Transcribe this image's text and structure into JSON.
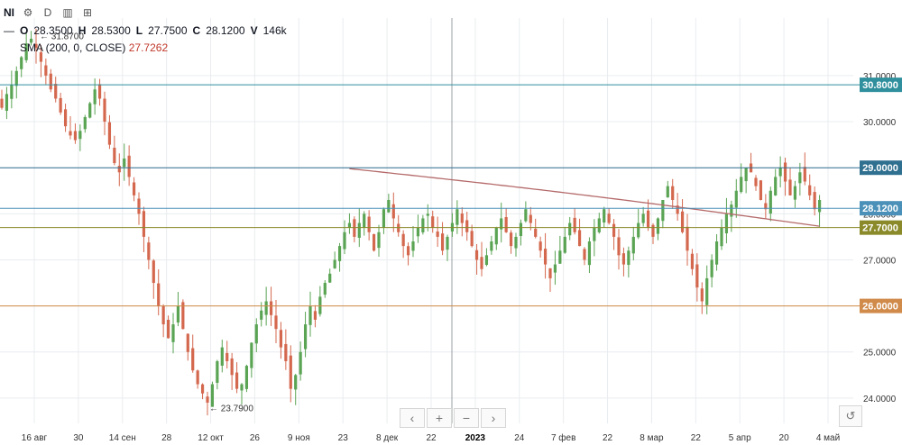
{
  "header": {
    "symbol": "NI",
    "interval": "D",
    "icons": [
      "gear-icon",
      "bar-chart-icon",
      "add-panel-icon"
    ]
  },
  "ohlc": {
    "labels": {
      "o": "O",
      "h": "H",
      "l": "L",
      "c": "C",
      "v": "V"
    },
    "open": "28.3500",
    "high": "28.5300",
    "low": "27.7500",
    "close": "28.1200",
    "volume": "146k"
  },
  "indicator": {
    "label": "SMA (200, 0, CLOSE)",
    "value": "27.7262"
  },
  "colors": {
    "up": "#5aa454",
    "down": "#d4684e",
    "sma": "#b56a6a",
    "grid": "#e9ecef"
  },
  "nav_icons": [
    "chevron-left-icon",
    "plus-icon",
    "minus-icon",
    "chevron-right-icon"
  ],
  "chart_data": {
    "type": "candlestick",
    "ylim": [
      23.45,
      32.25
    ],
    "y_ticks": [
      "24.0000",
      "25.0000",
      "26.0000",
      "27.0000",
      "28.0000",
      "29.0000",
      "30.0000",
      "31.0000"
    ],
    "x_ticks": [
      "16 авг",
      "30",
      "14 сен",
      "28",
      "12 окт",
      "26",
      "9 ноя",
      "23",
      "8 дек",
      "22",
      "2023",
      "24",
      "7 фев",
      "22",
      "8 мар",
      "22",
      "5 апр",
      "20",
      "4 май"
    ],
    "x_bold_tick": "2023",
    "levels": [
      {
        "value": 30.8,
        "label": "30.8000",
        "color": "#2f8f9d"
      },
      {
        "value": 29.0,
        "label": "29.0000",
        "color": "#2f6f8f"
      },
      {
        "value": 28.12,
        "label": "28.1200",
        "color": "#4a90b8"
      },
      {
        "value": 27.7,
        "label": "27.7000",
        "color": "#8a8a2a"
      },
      {
        "value": 26.0,
        "label": "26.0000",
        "color": "#d08a4a"
      }
    ],
    "annotations": [
      {
        "label": "31.8700",
        "value": 31.87
      },
      {
        "label": "23.7900",
        "value": 23.79
      }
    ],
    "closes": [
      30.3,
      30.6,
      30.8,
      31.1,
      31.4,
      31.7,
      31.8,
      31.6,
      31.3,
      31.0,
      30.7,
      30.5,
      30.2,
      29.9,
      29.7,
      29.6,
      29.8,
      30.1,
      30.4,
      30.7,
      30.5,
      30.0,
      29.5,
      29.1,
      28.9,
      29.2,
      28.8,
      28.4,
      28.0,
      27.5,
      27.0,
      26.5,
      26.0,
      25.6,
      25.3,
      25.6,
      26.0,
      25.5,
      25.0,
      24.6,
      24.3,
      24.1,
      23.9,
      24.3,
      24.8,
      25.1,
      24.8,
      24.5,
      24.2,
      24.3,
      24.7,
      25.2,
      25.6,
      25.9,
      26.1,
      25.8,
      25.5,
      25.1,
      24.8,
      24.2,
      24.5,
      25.0,
      25.6,
      26.0,
      25.7,
      26.2,
      26.5,
      26.7,
      27.0,
      27.3,
      27.6,
      27.8,
      27.5,
      27.8,
      28.0,
      27.6,
      27.2,
      27.6,
      28.1,
      28.3,
      27.9,
      27.6,
      27.3,
      27.1,
      27.4,
      27.7,
      27.9,
      28.0,
      27.7,
      27.5,
      27.2,
      27.5,
      27.8,
      28.1,
      27.8,
      27.6,
      27.3,
      27.0,
      26.8,
      27.1,
      27.4,
      27.7,
      27.9,
      27.6,
      27.3,
      27.5,
      27.8,
      28.1,
      27.8,
      27.5,
      27.2,
      26.9,
      26.6,
      26.9,
      27.2,
      27.5,
      27.8,
      27.6,
      27.3,
      27.0,
      27.4,
      27.7,
      27.9,
      28.1,
      27.8,
      27.5,
      27.1,
      26.9,
      27.2,
      27.5,
      27.8,
      28.0,
      27.7,
      27.5,
      27.9,
      28.3,
      28.6,
      28.3,
      28.0,
      27.6,
      27.2,
      26.8,
      26.4,
      26.1,
      26.6,
      27.0,
      27.4,
      27.7,
      28.0,
      28.2,
      28.5,
      28.8,
      29.0,
      28.9,
      28.6,
      28.3,
      28.1,
      28.5,
      28.8,
      29.0,
      28.7,
      28.4,
      28.6,
      28.9,
      28.7,
      28.4,
      28.1,
      28.3
    ]
  }
}
